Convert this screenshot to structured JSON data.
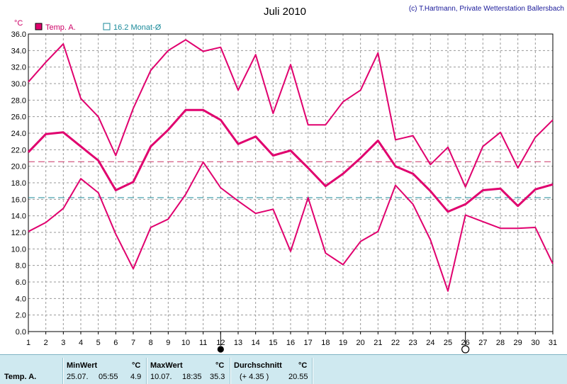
{
  "chart_data": {
    "type": "line",
    "title": "Juli 2010",
    "credit": "(c) T.Hartmann, Private Wetterstation Ballersbach",
    "y_unit": "°C",
    "ylim": [
      0,
      36
    ],
    "y_ticks": [
      "0.0",
      "2.0",
      "4.0",
      "6.0",
      "8.0",
      "10.0",
      "12.0",
      "14.0",
      "16.0",
      "18.0",
      "20.0",
      "22.0",
      "24.0",
      "26.0",
      "28.0",
      "30.0",
      "32.0",
      "34.0",
      "36.0"
    ],
    "categories": [
      "1",
      "2",
      "3",
      "4",
      "5",
      "6",
      "7",
      "8",
      "9",
      "10",
      "11",
      "12",
      "13",
      "14",
      "15",
      "16",
      "17",
      "18",
      "19",
      "20",
      "21",
      "22",
      "23",
      "24",
      "25",
      "26",
      "27",
      "28",
      "29",
      "30",
      "31"
    ],
    "grid": true,
    "legend": [
      {
        "label": "Temp. A.",
        "color": "#e0006e",
        "filled": true
      },
      {
        "label": "16.2 Monat-Ø",
        "color": "#1a8a9a",
        "filled": false
      }
    ],
    "series": [
      {
        "name": "",
        "role": "max",
        "color": "#e0006e",
        "values": [
          30.2,
          32.6,
          34.8,
          28.2,
          26.0,
          21.3,
          27.0,
          31.6,
          34.0,
          35.3,
          33.9,
          34.4,
          29.2,
          33.5,
          26.4,
          32.3,
          25.0,
          25.0,
          27.8,
          29.2,
          33.7,
          23.2,
          23.7,
          20.2,
          22.3,
          17.5,
          22.4,
          24.1,
          19.8,
          23.5,
          25.6
        ]
      },
      {
        "name": "",
        "role": "avg",
        "color": "#e0006e",
        "values": [
          21.7,
          23.9,
          24.1,
          22.4,
          20.7,
          17.1,
          18.1,
          22.4,
          24.4,
          26.8,
          26.8,
          25.6,
          22.7,
          23.6,
          21.3,
          21.9,
          19.8,
          17.6,
          19.1,
          21.0,
          23.1,
          20.0,
          19.1,
          17.0,
          14.5,
          15.4,
          17.1,
          17.3,
          15.2,
          17.2,
          17.8
        ]
      },
      {
        "name": "",
        "role": "min",
        "color": "#e0006e",
        "values": [
          12.1,
          13.2,
          14.9,
          18.5,
          16.8,
          11.8,
          7.6,
          12.6,
          13.6,
          16.6,
          20.5,
          17.4,
          15.8,
          14.3,
          14.8,
          9.7,
          16.2,
          9.5,
          8.1,
          10.9,
          12.1,
          17.7,
          15.4,
          11.1,
          4.9,
          14.1,
          13.3,
          12.5,
          12.5,
          12.6,
          8.2
        ]
      }
    ],
    "reference_lines": [
      {
        "value": 20.55,
        "color": "#cc3366",
        "style": "dashed"
      },
      {
        "value": 16.2,
        "color": "#1a8a9a",
        "style": "dashed"
      }
    ],
    "moon_markers": [
      {
        "day": "12",
        "phase": "new"
      },
      {
        "day": "26",
        "phase": "full"
      }
    ]
  },
  "stats": {
    "row_label": "Temp. A.",
    "min": {
      "header": "MinWert",
      "unit": "°C",
      "date": "25.07.",
      "time": "05:55",
      "value": "4.9"
    },
    "max": {
      "header": "MaxWert",
      "unit": "°C",
      "date": "10.07.",
      "time": "18:35",
      "value": "35.3"
    },
    "avg": {
      "header": "Durchschnitt",
      "unit": "°C",
      "delta": "(+ 4.35 )",
      "value": "20.55"
    }
  }
}
